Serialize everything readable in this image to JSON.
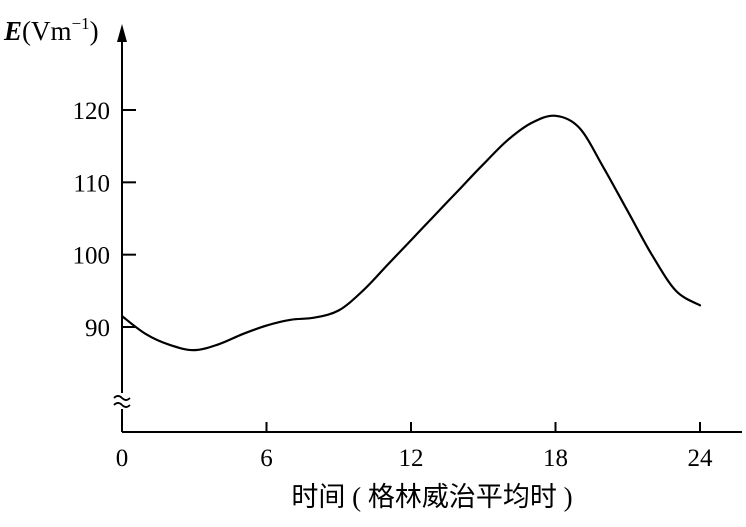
{
  "chart_data": {
    "type": "line",
    "ylabel_symbol": "E",
    "ylabel_unit": "(Vm",
    "ylabel_exponent": "−1",
    "ylabel_close": ")",
    "xlabel": "时间 ( 格林威治平均时 )",
    "xlim": [
      0,
      24
    ],
    "ylim": [
      78,
      126
    ],
    "xticks": [
      0,
      6,
      12,
      18,
      24
    ],
    "xtick_labels": [
      "0",
      "6",
      "12",
      "18",
      "24"
    ],
    "yticks": [
      90,
      100,
      110,
      120
    ],
    "ytick_labels": [
      "90",
      "100",
      "110",
      "120"
    ],
    "y_axis_break": true,
    "grid": false,
    "series": [
      {
        "x": [
          0,
          1,
          2,
          3,
          4,
          5,
          6,
          7,
          8,
          9,
          10,
          11,
          12,
          13,
          14,
          15,
          16,
          17,
          18,
          19,
          20,
          21,
          22,
          23,
          24
        ],
        "values": [
          91.5,
          89,
          87.5,
          86.8,
          87.6,
          89,
          90.2,
          91,
          91.3,
          92.3,
          95,
          98.5,
          102,
          105.5,
          109,
          112.5,
          115.8,
          118.2,
          119.2,
          117.5,
          112,
          106,
          100,
          95,
          93
        ]
      }
    ]
  }
}
